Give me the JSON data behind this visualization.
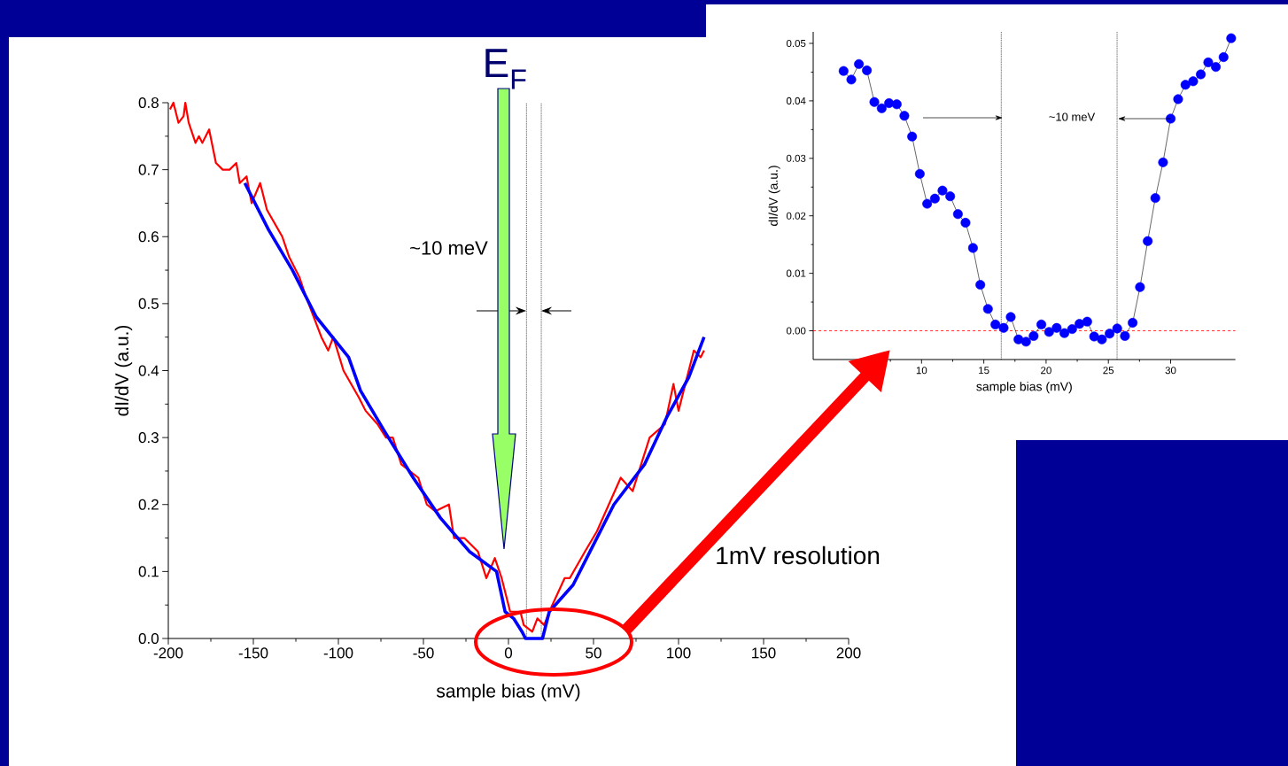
{
  "chart_data": [
    {
      "type": "line",
      "xlabel": "sample bias (mV)",
      "ylabel": "dI/dV (a.u.)",
      "xlim": [
        -200,
        200
      ],
      "ylim": [
        0,
        0.8
      ],
      "xticks": [
        -200,
        -150,
        -100,
        -50,
        0,
        50,
        100,
        150,
        200
      ],
      "yticks": [
        {
          "value": 0,
          "label": "0.0"
        },
        {
          "value": 0.1,
          "label": "0.1"
        },
        {
          "value": 0.2,
          "label": "0.2"
        },
        {
          "value": 0.3,
          "label": "0.3"
        },
        {
          "value": 0.4,
          "label": "0.4"
        },
        {
          "value": 0.5,
          "label": "0.5"
        },
        {
          "value": 0.6,
          "label": "0.6"
        },
        {
          "value": 0.7,
          "label": "0.7"
        },
        {
          "value": 0.8,
          "label": "0.8"
        }
      ],
      "series": [
        {
          "color": "#ff0000",
          "x": [
            -199,
            -197,
            -194,
            -191,
            -190,
            -188,
            -184,
            -182,
            -180,
            -176,
            -172,
            -168,
            -164,
            -160,
            -158,
            -154,
            -151,
            -146,
            -142,
            -133,
            -129,
            -123,
            -119,
            -110,
            -106,
            -103,
            -97,
            -88,
            -84,
            -77,
            -72,
            -68,
            -63,
            -53,
            -48,
            -43,
            -35,
            -32,
            -26,
            -18,
            -13,
            -8,
            -4,
            1,
            7,
            9,
            14,
            17,
            21,
            24,
            33,
            36,
            45,
            52,
            66,
            73,
            83,
            92,
            97,
            100,
            109,
            113,
            115
          ],
          "values": [
            0.79,
            0.8,
            0.77,
            0.78,
            0.8,
            0.77,
            0.74,
            0.75,
            0.74,
            0.76,
            0.71,
            0.7,
            0.7,
            0.71,
            0.68,
            0.69,
            0.65,
            0.68,
            0.64,
            0.6,
            0.57,
            0.54,
            0.51,
            0.45,
            0.43,
            0.45,
            0.4,
            0.36,
            0.34,
            0.32,
            0.3,
            0.3,
            0.26,
            0.24,
            0.2,
            0.19,
            0.2,
            0.15,
            0.15,
            0.13,
            0.09,
            0.12,
            0.09,
            0.04,
            0.04,
            0.02,
            0.01,
            0.03,
            0.02,
            0.04,
            0.09,
            0.09,
            0.13,
            0.16,
            0.24,
            0.22,
            0.3,
            0.32,
            0.38,
            0.34,
            0.43,
            0.42,
            0.43
          ]
        },
        {
          "color": "#0000ff",
          "x": [
            -155,
            -141,
            -127,
            -113,
            -94,
            -87,
            -73,
            -56,
            -40,
            -23,
            -7,
            -2,
            3,
            8,
            10,
            20,
            24,
            38,
            48,
            62,
            80,
            93,
            106,
            115
          ],
          "values": [
            0.68,
            0.61,
            0.55,
            0.48,
            0.42,
            0.37,
            0.31,
            0.24,
            0.18,
            0.13,
            0.1,
            0.04,
            0.03,
            0.01,
            0,
            0,
            0.04,
            0.08,
            0.13,
            0.2,
            0.26,
            0.33,
            0.39,
            0.45
          ]
        }
      ],
      "ref_lines": [
        {
          "axis": "x",
          "value": 10.6,
          "line_style": "dotted",
          "color": "#000000"
        },
        {
          "axis": "x",
          "value": 19.3,
          "line_style": "dotted",
          "color": "#000000"
        }
      ],
      "annotations": [
        "E$_{F}$",
        "~10 meV",
        "1mV resolution"
      ]
    },
    {
      "type": "line",
      "marker": "circle",
      "xlabel": "sample bias (mV)",
      "ylabel": "dI/dV (a.u.)",
      "xlim": [
        1.3,
        35.2
      ],
      "ylim": [
        -0.005,
        0.052
      ],
      "xticks": [
        {
          "value": 5,
          "label": null
        },
        10,
        15,
        20,
        25,
        30
      ],
      "yticks": [
        {
          "value": 0,
          "label": "0.00"
        },
        {
          "value": 0.01,
          "label": "0.01"
        },
        {
          "value": 0.02,
          "label": "0.02"
        },
        {
          "value": 0.03,
          "label": "0.03"
        },
        {
          "value": 0.04,
          "label": "0.04"
        },
        {
          "value": 0.05,
          "label": "0.05"
        }
      ],
      "series": [
        {
          "color": "#0000ff",
          "x": [
            3.74,
            4.36,
            4.97,
            5.61,
            6.21,
            6.8,
            7.39,
            8.01,
            8.62,
            9.24,
            9.86,
            10.45,
            11.07,
            11.68,
            12.3,
            12.92,
            13.53,
            14.13,
            14.72,
            15.33,
            15.93,
            16.59,
            17.16,
            17.78,
            18.39,
            19.0,
            19.62,
            20.24,
            20.85,
            21.47,
            22.09,
            22.68,
            23.3,
            23.86,
            24.48,
            25.1,
            25.71,
            26.33,
            26.95,
            27.54,
            28.16,
            28.77,
            29.39,
            30.0,
            30.6,
            31.19,
            31.81,
            32.42,
            33.02,
            33.63,
            34.25,
            34.86
          ],
          "values": [
            0.0452,
            0.0437,
            0.0464,
            0.0453,
            0.0398,
            0.0387,
            0.0396,
            0.0394,
            0.0374,
            0.0338,
            0.0273,
            0.0221,
            0.023,
            0.0244,
            0.0234,
            0.0203,
            0.0188,
            0.0144,
            0.008,
            0.0038,
            0.0011,
            0.0005,
            0.0024,
            -0.0015,
            -0.0019,
            -0.0009,
            0.0011,
            -0.0002,
            0.0005,
            -0.0004,
            0.0003,
            0.0012,
            0.0016,
            -0.001,
            -0.0015,
            -0.0005,
            0.0004,
            -0.0009,
            0.0014,
            0.0076,
            0.0156,
            0.0231,
            0.0293,
            0.0369,
            0.0403,
            0.0428,
            0.0434,
            0.0446,
            0.0467,
            0.0459,
            0.0476,
            0.0509
          ]
        }
      ],
      "ref_lines": [
        {
          "axis": "y",
          "value": 0,
          "line_style": "dashed",
          "color": "#ff0000"
        },
        {
          "axis": "x",
          "value": 16.4,
          "line_style": "dotted",
          "color": "#000000"
        },
        {
          "axis": "x",
          "value": 25.7,
          "line_style": "dotted",
          "color": "#000000"
        }
      ],
      "annotations": [
        "~10 meV"
      ]
    }
  ]
}
